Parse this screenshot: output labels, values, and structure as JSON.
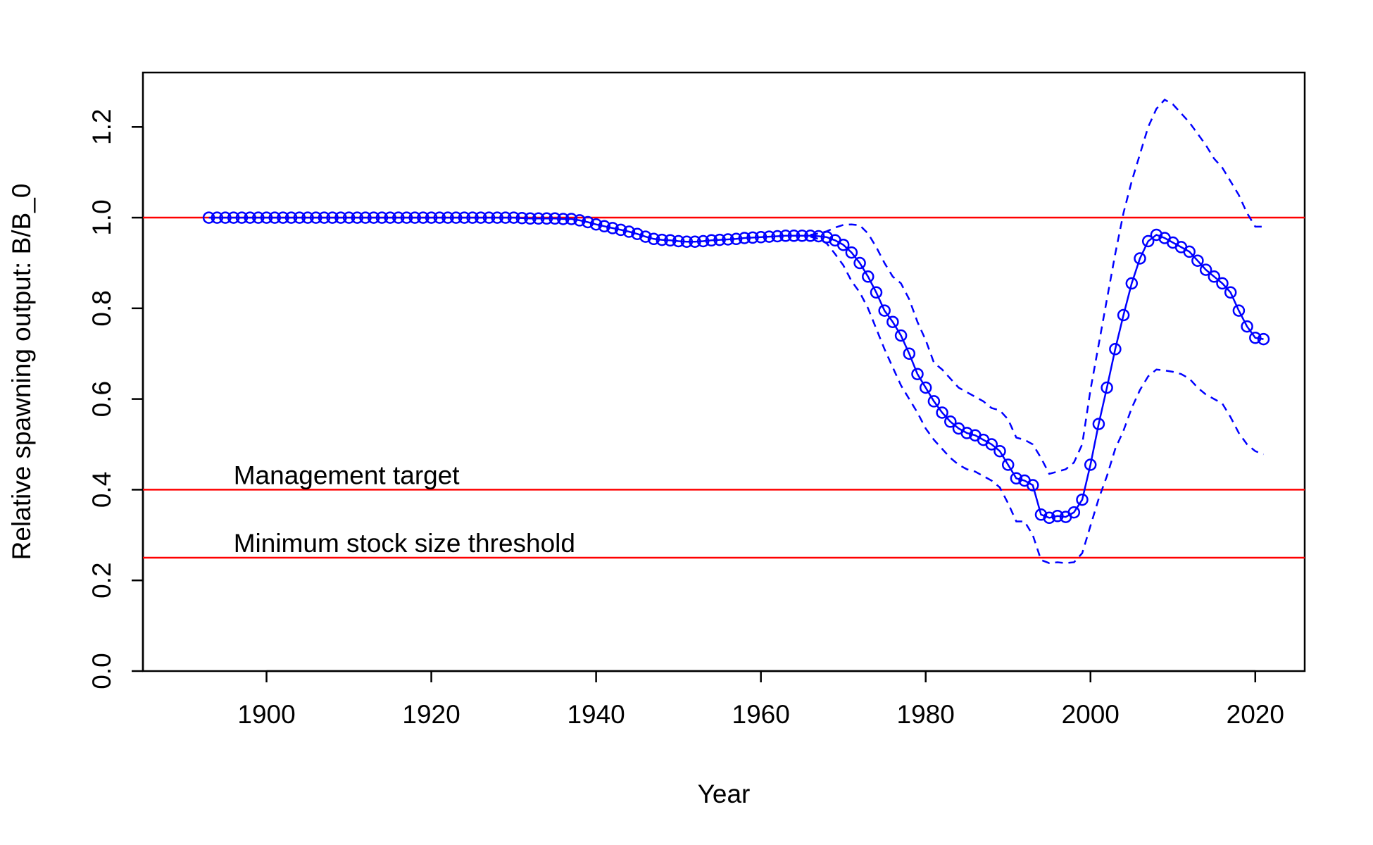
{
  "chart_data": {
    "type": "line",
    "xlabel": "Year",
    "ylabel": "Relative spawning output: B/B_0",
    "xlim": [
      1885,
      2026
    ],
    "ylim": [
      0,
      1.32
    ],
    "x_ticks": [
      1900,
      1920,
      1940,
      1960,
      1980,
      2000,
      2020
    ],
    "x_tick_labels": [
      "1900",
      "1920",
      "1940",
      "1960",
      "1980",
      "2000",
      "2020"
    ],
    "y_ticks": [
      0.0,
      0.2,
      0.4,
      0.6,
      0.8,
      1.0,
      1.2
    ],
    "y_tick_labels": [
      "0.0",
      "0.2",
      "0.4",
      "0.6",
      "0.8",
      "1.0",
      "1.2"
    ],
    "grid": false,
    "colors": {
      "series": "#0000ff",
      "reference": "#ff0000"
    },
    "reference_lines": [
      {
        "y": 1.0,
        "label": ""
      },
      {
        "y": 0.4,
        "label": "Management target",
        "label_x": 1896
      },
      {
        "y": 0.25,
        "label": "Minimum stock size threshold",
        "label_x": 1896
      }
    ],
    "series": [
      {
        "style": "line-with-circles",
        "x": [
          1893,
          1894,
          1895,
          1896,
          1897,
          1898,
          1899,
          1900,
          1901,
          1902,
          1903,
          1904,
          1905,
          1906,
          1907,
          1908,
          1909,
          1910,
          1911,
          1912,
          1913,
          1914,
          1915,
          1916,
          1917,
          1918,
          1919,
          1920,
          1921,
          1922,
          1923,
          1924,
          1925,
          1926,
          1927,
          1928,
          1929,
          1930,
          1931,
          1932,
          1933,
          1934,
          1935,
          1936,
          1937,
          1938,
          1939,
          1940,
          1941,
          1942,
          1943,
          1944,
          1945,
          1946,
          1947,
          1948,
          1949,
          1950,
          1951,
          1952,
          1953,
          1954,
          1955,
          1956,
          1957,
          1958,
          1959,
          1960,
          1961,
          1962,
          1963,
          1964,
          1965,
          1966,
          1967,
          1968,
          1969,
          1970,
          1971,
          1972,
          1973,
          1974,
          1975,
          1976,
          1977,
          1978,
          1979,
          1980,
          1981,
          1982,
          1983,
          1984,
          1985,
          1986,
          1987,
          1988,
          1989,
          1990,
          1991,
          1992,
          1993,
          1994,
          1995,
          1996,
          1997,
          1998,
          1999,
          2000,
          2001,
          2002,
          2003,
          2004,
          2005,
          2006,
          2007,
          2008,
          2009,
          2010,
          2011,
          2012,
          2013,
          2014,
          2015,
          2016,
          2017,
          2018,
          2019,
          2020,
          2021
        ],
        "y": [
          1.0,
          1.0,
          1.0,
          1.0,
          1.0,
          1.0,
          1.0,
          1.0,
          1.0,
          1.0,
          1.0,
          1.0,
          1.0,
          1.0,
          1.0,
          1.0,
          1.0,
          1.0,
          1.0,
          1.0,
          1.0,
          1.0,
          1.0,
          1.0,
          1.0,
          1.0,
          1.0,
          1.0,
          1.0,
          1.0,
          1.0,
          1.0,
          1.0,
          1.0,
          1.0,
          1.0,
          1.0,
          1.0,
          0.999,
          0.998,
          0.998,
          0.998,
          0.998,
          0.997,
          0.997,
          0.994,
          0.99,
          0.985,
          0.981,
          0.977,
          0.973,
          0.969,
          0.964,
          0.958,
          0.953,
          0.951,
          0.95,
          0.948,
          0.947,
          0.947,
          0.948,
          0.95,
          0.951,
          0.952,
          0.953,
          0.955,
          0.956,
          0.957,
          0.958,
          0.959,
          0.96,
          0.96,
          0.96,
          0.96,
          0.959,
          0.957,
          0.95,
          0.94,
          0.923,
          0.9,
          0.87,
          0.835,
          0.795,
          0.77,
          0.74,
          0.7,
          0.655,
          0.625,
          0.595,
          0.57,
          0.55,
          0.535,
          0.525,
          0.52,
          0.51,
          0.5,
          0.485,
          0.455,
          0.425,
          0.42,
          0.41,
          0.345,
          0.338,
          0.342,
          0.34,
          0.35,
          0.378,
          0.455,
          0.545,
          0.625,
          0.71,
          0.785,
          0.855,
          0.91,
          0.948,
          0.962,
          0.955,
          0.945,
          0.935,
          0.925,
          0.905,
          0.885,
          0.87,
          0.855,
          0.835,
          0.795,
          0.76,
          0.735,
          0.732
        ]
      },
      {
        "style": "dashed",
        "x": [
          1966,
          1967,
          1968,
          1969,
          1970,
          1971,
          1972,
          1973,
          1974,
          1975,
          1976,
          1977,
          1978,
          1979,
          1980,
          1981,
          1982,
          1983,
          1984,
          1985,
          1986,
          1987,
          1988,
          1989,
          1990,
          1991,
          1992,
          1993,
          1994,
          1995,
          1996,
          1997,
          1998,
          1999,
          2000,
          2001,
          2002,
          2003,
          2004,
          2005,
          2006,
          2007,
          2008,
          2009,
          2010,
          2011,
          2012,
          2013,
          2014,
          2015,
          2016,
          2017,
          2018,
          2019,
          2020,
          2021
        ],
        "y": [
          0.962,
          0.965,
          0.97,
          0.978,
          0.984,
          0.985,
          0.983,
          0.965,
          0.935,
          0.9,
          0.87,
          0.855,
          0.82,
          0.77,
          0.73,
          0.68,
          0.665,
          0.645,
          0.625,
          0.615,
          0.605,
          0.595,
          0.58,
          0.575,
          0.555,
          0.515,
          0.51,
          0.5,
          0.47,
          0.435,
          0.44,
          0.445,
          0.46,
          0.5,
          0.62,
          0.72,
          0.82,
          0.92,
          1.01,
          1.08,
          1.14,
          1.2,
          1.24,
          1.26,
          1.25,
          1.23,
          1.21,
          1.185,
          1.16,
          1.13,
          1.11,
          1.08,
          1.05,
          1.01,
          0.98,
          0.98
        ]
      },
      {
        "style": "dashed",
        "x": [
          1966,
          1967,
          1968,
          1969,
          1970,
          1971,
          1972,
          1973,
          1974,
          1975,
          1976,
          1977,
          1978,
          1979,
          1980,
          1981,
          1982,
          1983,
          1984,
          1985,
          1986,
          1987,
          1988,
          1989,
          1990,
          1991,
          1992,
          1993,
          1994,
          1995,
          1996,
          1997,
          1998,
          1999,
          2000,
          2001,
          2002,
          2003,
          2004,
          2005,
          2006,
          2007,
          2008,
          2009,
          2010,
          2011,
          2012,
          2013,
          2014,
          2015,
          2016,
          2017,
          2018,
          2019,
          2020,
          2021
        ],
        "y": [
          0.958,
          0.953,
          0.943,
          0.92,
          0.895,
          0.86,
          0.835,
          0.8,
          0.755,
          0.71,
          0.67,
          0.63,
          0.6,
          0.57,
          0.535,
          0.51,
          0.49,
          0.47,
          0.455,
          0.445,
          0.44,
          0.43,
          0.42,
          0.405,
          0.37,
          0.33,
          0.33,
          0.3,
          0.245,
          0.238,
          0.24,
          0.238,
          0.24,
          0.26,
          0.32,
          0.38,
          0.43,
          0.49,
          0.53,
          0.58,
          0.62,
          0.65,
          0.665,
          0.663,
          0.66,
          0.655,
          0.645,
          0.625,
          0.61,
          0.6,
          0.59,
          0.56,
          0.525,
          0.5,
          0.485,
          0.478
        ]
      }
    ]
  }
}
